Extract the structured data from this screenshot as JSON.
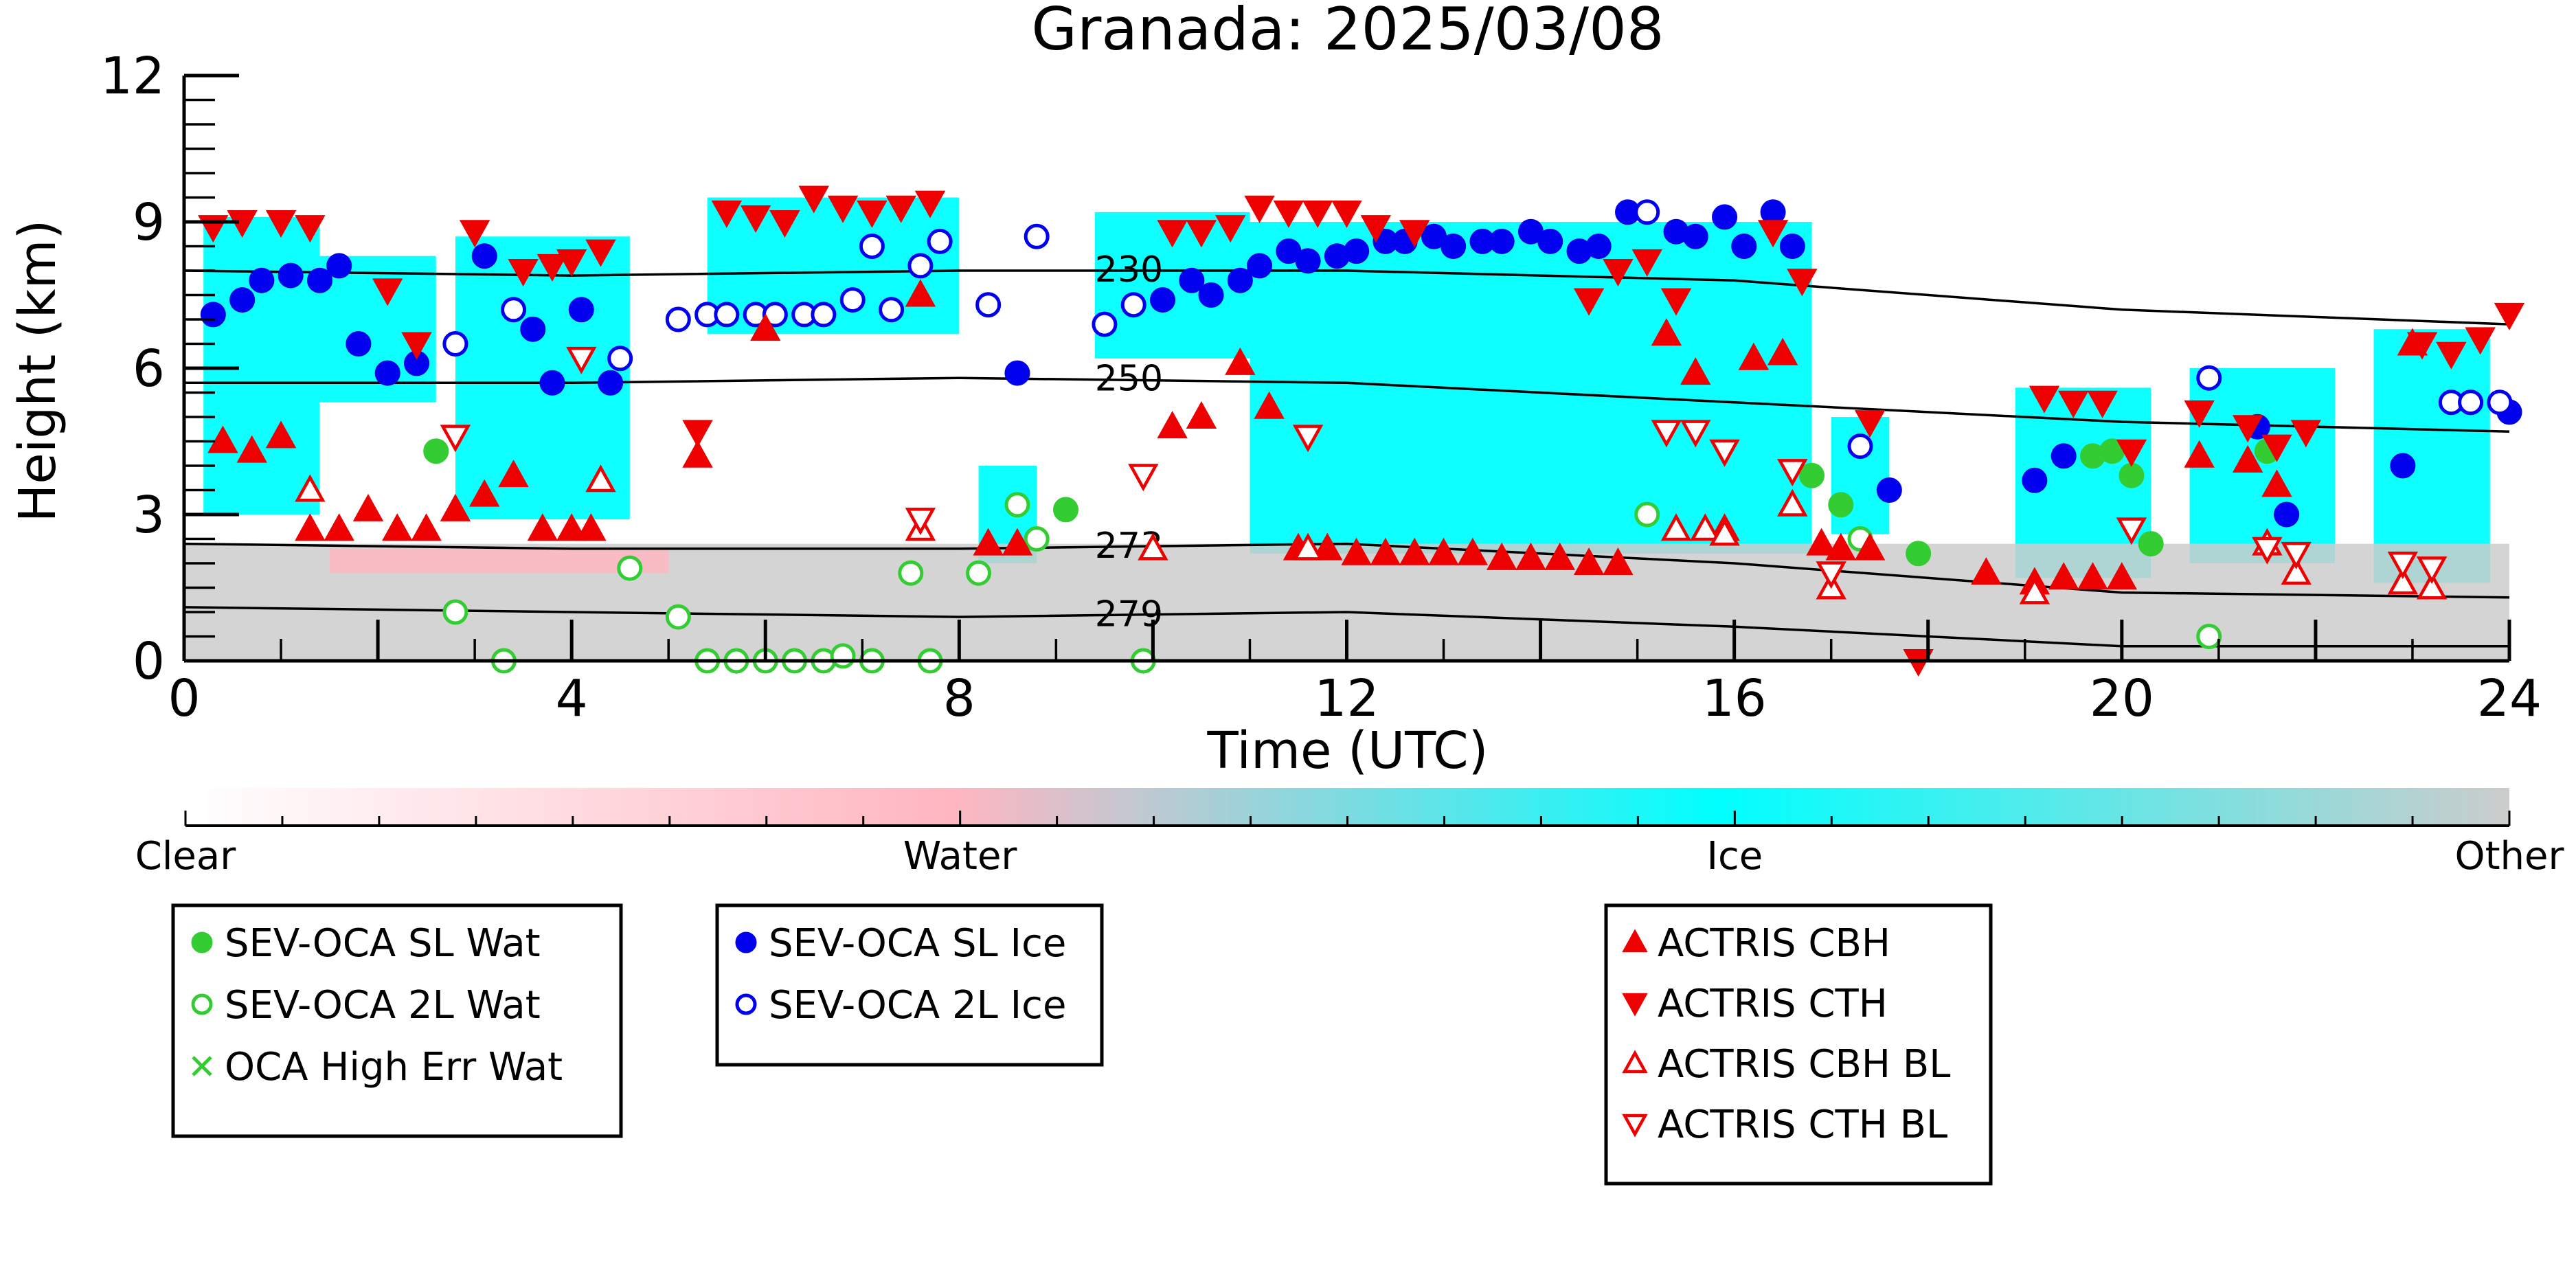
{
  "chart_data": {
    "type": "scatter",
    "title": "Granada: 2025/03/08",
    "xlabel": "Time (UTC)",
    "ylabel": "Height (km)",
    "xlim": [
      0,
      24
    ],
    "ylim": [
      0,
      12
    ],
    "x_ticks": [
      0,
      4,
      8,
      12,
      16,
      20,
      24
    ],
    "y_ticks": [
      0,
      3,
      6,
      9,
      12
    ],
    "grid": false,
    "colorbar": {
      "labels": [
        "Clear",
        "Water",
        "Ice",
        "Other"
      ],
      "colors": [
        "#ffffff",
        "#ffb6c1",
        "#00ffff",
        "#cccccc"
      ]
    },
    "background_layers": [
      {
        "class": "Ice",
        "color": "#00ffff",
        "t0": 0.2,
        "t1": 1.4,
        "h0": 3.0,
        "h1": 9.1
      },
      {
        "class": "Ice",
        "color": "#00ffff",
        "t0": 1.4,
        "t1": 2.6,
        "h0": 5.3,
        "h1": 8.3
      },
      {
        "class": "Ice",
        "color": "#00ffff",
        "t0": 2.8,
        "t1": 4.6,
        "h0": 2.9,
        "h1": 8.7
      },
      {
        "class": "Ice",
        "color": "#00ffff",
        "t0": 5.4,
        "t1": 8.0,
        "h0": 6.7,
        "h1": 9.5
      },
      {
        "class": "Ice",
        "color": "#00ffff",
        "t0": 8.2,
        "t1": 8.8,
        "h0": 2.0,
        "h1": 4.0
      },
      {
        "class": "Ice",
        "color": "#00ffff",
        "t0": 9.4,
        "t1": 11.0,
        "h0": 6.2,
        "h1": 9.2
      },
      {
        "class": "Ice",
        "color": "#00ffff",
        "t0": 11.0,
        "t1": 16.8,
        "h0": 2.2,
        "h1": 9.0
      },
      {
        "class": "Ice",
        "color": "#00ffff",
        "t0": 17.0,
        "t1": 17.6,
        "h0": 2.6,
        "h1": 5.0
      },
      {
        "class": "Ice",
        "color": "#00ffff",
        "t0": 18.9,
        "t1": 20.3,
        "h0": 1.7,
        "h1": 5.6
      },
      {
        "class": "Ice",
        "color": "#00ffff",
        "t0": 20.7,
        "t1": 22.2,
        "h0": 2.0,
        "h1": 6.0
      },
      {
        "class": "Ice",
        "color": "#00ffff",
        "t0": 22.6,
        "t1": 23.8,
        "h0": 1.6,
        "h1": 6.8
      },
      {
        "class": "Other",
        "color": "#cccccc",
        "t0": 0.0,
        "t1": 24.0,
        "h0": 0.0,
        "h1": 2.4
      },
      {
        "class": "Water",
        "color": "#ffb6c1",
        "t0": 1.5,
        "t1": 5.0,
        "h0": 1.8,
        "h1": 2.3
      }
    ],
    "isotherms": [
      {
        "label": "230",
        "x": [
          0,
          4,
          8,
          12,
          16,
          20,
          24
        ],
        "y": [
          8.0,
          7.9,
          8.0,
          8.0,
          7.8,
          7.2,
          6.9
        ]
      },
      {
        "label": "250",
        "x": [
          0,
          4,
          8,
          12,
          16,
          20,
          24
        ],
        "y": [
          5.7,
          5.7,
          5.8,
          5.7,
          5.3,
          4.9,
          4.7
        ]
      },
      {
        "label": "273",
        "x": [
          0,
          4,
          8,
          12,
          16,
          20,
          24
        ],
        "y": [
          2.4,
          2.3,
          2.3,
          2.4,
          2.0,
          1.4,
          1.3
        ]
      },
      {
        "label": "279",
        "x": [
          0,
          4,
          8,
          12,
          16,
          20,
          24
        ],
        "y": [
          1.1,
          1.0,
          0.9,
          1.0,
          0.7,
          0.3,
          0.3
        ]
      }
    ],
    "series": [
      {
        "name": "SEV-OCA SL Wat",
        "marker": "circle",
        "color": "#33cc33",
        "filled": true,
        "x": [
          2.1,
          2.6,
          9.1,
          16.8,
          17.1,
          17.9,
          19.7,
          19.9,
          20.1,
          20.3,
          21.5
        ],
        "y": [
          5.9,
          4.3,
          3.1,
          3.8,
          3.2,
          2.2,
          4.2,
          4.3,
          3.8,
          2.4,
          4.3
        ]
      },
      {
        "name": "SEV-OCA 2L Wat",
        "marker": "circle",
        "color": "#33cc33",
        "filled": false,
        "x": [
          2.8,
          3.3,
          4.6,
          5.1,
          5.4,
          5.7,
          6.0,
          6.3,
          6.6,
          6.8,
          7.1,
          7.5,
          7.7,
          8.2,
          8.6,
          8.8,
          9.9,
          15.1,
          17.3,
          20.9
        ],
        "y": [
          1.0,
          0.0,
          1.9,
          0.9,
          0.0,
          0.0,
          0.0,
          0.0,
          0.0,
          0.1,
          0.0,
          1.8,
          0.0,
          1.8,
          3.2,
          2.5,
          0.0,
          3.0,
          2.5,
          0.5
        ]
      },
      {
        "name": "OCA High Err Wat",
        "marker": "x",
        "color": "#33cc33",
        "filled": false,
        "x": [],
        "y": []
      },
      {
        "name": "SEV-OCA SL Ice",
        "marker": "circle",
        "color": "#0000ee",
        "filled": true,
        "x": [
          0.3,
          0.6,
          0.8,
          1.1,
          1.4,
          1.6,
          1.8,
          2.1,
          2.4,
          3.1,
          3.6,
          3.8,
          4.1,
          4.4,
          8.6,
          10.1,
          10.4,
          10.6,
          10.9,
          11.1,
          11.4,
          11.6,
          11.9,
          12.1,
          12.4,
          12.6,
          12.9,
          13.1,
          13.4,
          13.6,
          13.9,
          14.1,
          14.4,
          14.6,
          14.9,
          15.4,
          15.6,
          15.9,
          16.1,
          16.4,
          16.6,
          17.6,
          19.1,
          19.4,
          21.4,
          21.7,
          22.9,
          23.6,
          24.0
        ],
        "y": [
          7.1,
          7.4,
          7.8,
          7.9,
          7.8,
          8.1,
          6.5,
          5.9,
          6.1,
          8.3,
          6.8,
          5.7,
          7.2,
          5.7,
          5.9,
          7.4,
          7.8,
          7.5,
          7.8,
          8.1,
          8.4,
          8.2,
          8.3,
          8.4,
          8.6,
          8.6,
          8.7,
          8.5,
          8.6,
          8.6,
          8.8,
          8.6,
          8.4,
          8.5,
          9.2,
          8.8,
          8.7,
          9.1,
          8.5,
          9.2,
          8.5,
          3.5,
          3.7,
          4.2,
          4.8,
          3.0,
          4.0,
          5.3,
          5.1
        ]
      },
      {
        "name": "SEV-OCA 2L Ice",
        "marker": "circle",
        "color": "#0000ee",
        "filled": false,
        "x": [
          2.8,
          3.4,
          4.5,
          5.1,
          5.4,
          5.6,
          5.9,
          6.1,
          6.4,
          6.6,
          6.9,
          7.1,
          7.3,
          7.6,
          7.8,
          8.3,
          8.8,
          9.5,
          9.8,
          15.1,
          17.3,
          20.9,
          23.4,
          23.6,
          23.9
        ],
        "y": [
          6.5,
          7.2,
          6.2,
          7.0,
          7.1,
          7.1,
          7.1,
          7.1,
          7.1,
          7.1,
          7.4,
          8.5,
          7.2,
          8.1,
          8.6,
          7.3,
          8.7,
          6.9,
          7.3,
          9.2,
          4.4,
          5.8,
          5.3,
          5.3,
          5.3
        ]
      },
      {
        "name": "ACTRIS CBH",
        "marker": "triangle-up",
        "color": "#ee0000",
        "filled": true,
        "x": [
          0.4,
          0.7,
          1.0,
          1.3,
          1.6,
          1.9,
          2.2,
          2.5,
          2.8,
          3.1,
          3.4,
          3.7,
          4.0,
          4.2,
          5.3,
          6.0,
          7.6,
          8.3,
          8.6,
          10.2,
          10.5,
          10.9,
          11.2,
          11.5,
          11.8,
          12.1,
          12.4,
          12.7,
          13.0,
          13.3,
          13.6,
          13.9,
          14.2,
          14.5,
          14.8,
          15.3,
          15.6,
          15.9,
          16.2,
          16.5,
          16.9,
          17.1,
          17.4,
          18.6,
          19.1,
          19.4,
          19.7,
          20.0,
          20.8,
          21.3,
          21.6,
          23.0
        ],
        "y": [
          4.5,
          4.3,
          4.6,
          2.7,
          2.7,
          3.1,
          2.7,
          2.7,
          3.1,
          3.4,
          3.8,
          2.7,
          2.7,
          2.7,
          4.2,
          6.8,
          7.5,
          2.4,
          2.4,
          4.8,
          5.0,
          6.1,
          5.2,
          2.3,
          2.3,
          2.2,
          2.2,
          2.2,
          2.2,
          2.2,
          2.1,
          2.1,
          2.1,
          2.0,
          2.0,
          6.7,
          5.9,
          2.7,
          6.2,
          6.3,
          2.4,
          2.3,
          2.3,
          1.8,
          1.6,
          1.7,
          1.7,
          1.7,
          4.2,
          4.1,
          3.6,
          6.5
        ]
      },
      {
        "name": "ACTRIS CTH",
        "marker": "triangle-down",
        "color": "#ee0000",
        "filled": true,
        "x": [
          0.3,
          0.6,
          1.0,
          1.3,
          2.1,
          2.4,
          3.0,
          3.5,
          3.8,
          4.0,
          4.3,
          5.3,
          5.6,
          5.9,
          6.2,
          6.5,
          6.8,
          7.1,
          7.4,
          7.7,
          10.2,
          10.5,
          10.8,
          11.1,
          11.4,
          11.7,
          12.0,
          12.3,
          12.7,
          14.5,
          14.8,
          15.1,
          15.4,
          16.4,
          16.7,
          17.4,
          17.9,
          19.2,
          19.5,
          19.8,
          20.1,
          20.8,
          21.3,
          21.6,
          21.9,
          23.1,
          23.4,
          23.7,
          24.0
        ],
        "y": [
          8.9,
          9.0,
          9.0,
          8.9,
          7.6,
          6.5,
          8.8,
          8.0,
          8.1,
          8.2,
          8.4,
          4.7,
          9.2,
          9.1,
          9.0,
          9.5,
          9.3,
          9.2,
          9.3,
          9.4,
          8.8,
          8.8,
          8.9,
          9.3,
          9.2,
          9.2,
          9.2,
          8.9,
          8.8,
          7.4,
          8.0,
          8.2,
          7.4,
          8.8,
          7.8,
          4.9,
          0.0,
          5.4,
          5.3,
          5.3,
          4.3,
          5.1,
          4.8,
          4.4,
          4.7,
          6.5,
          6.3,
          6.6,
          7.1
        ]
      },
      {
        "name": "ACTRIS CBH BL",
        "marker": "triangle-up",
        "color": "#ee0000",
        "filled": false,
        "x": [
          1.3,
          4.3,
          7.6,
          10.0,
          11.6,
          15.4,
          15.7,
          15.9,
          16.6,
          17.0,
          19.1,
          21.5,
          21.8,
          22.9,
          23.2
        ],
        "y": [
          3.5,
          3.7,
          2.7,
          2.3,
          2.3,
          2.7,
          2.7,
          2.6,
          3.2,
          1.5,
          1.4,
          2.4,
          1.8,
          1.6,
          1.5
        ]
      },
      {
        "name": "ACTRIS CTH BL",
        "marker": "triangle-down",
        "color": "#ee0000",
        "filled": false,
        "x": [
          2.8,
          4.1,
          7.6,
          9.9,
          11.6,
          15.3,
          15.6,
          15.9,
          16.6,
          17.0,
          20.1,
          21.5,
          21.8,
          22.9,
          23.2
        ],
        "y": [
          4.6,
          6.2,
          2.9,
          3.8,
          4.6,
          4.7,
          4.7,
          4.3,
          3.9,
          1.8,
          2.7,
          2.3,
          2.2,
          2.0,
          1.9
        ]
      }
    ],
    "legends": [
      {
        "entries": [
          "SEV-OCA SL Wat",
          "SEV-OCA 2L Wat",
          "OCA High Err Wat"
        ]
      },
      {
        "entries": [
          "SEV-OCA SL Ice",
          "SEV-OCA 2L Ice"
        ]
      },
      {
        "entries": [
          "ACTRIS CBH",
          "ACTRIS CTH",
          "ACTRIS CBH BL",
          "ACTRIS CTH BL"
        ]
      }
    ]
  }
}
